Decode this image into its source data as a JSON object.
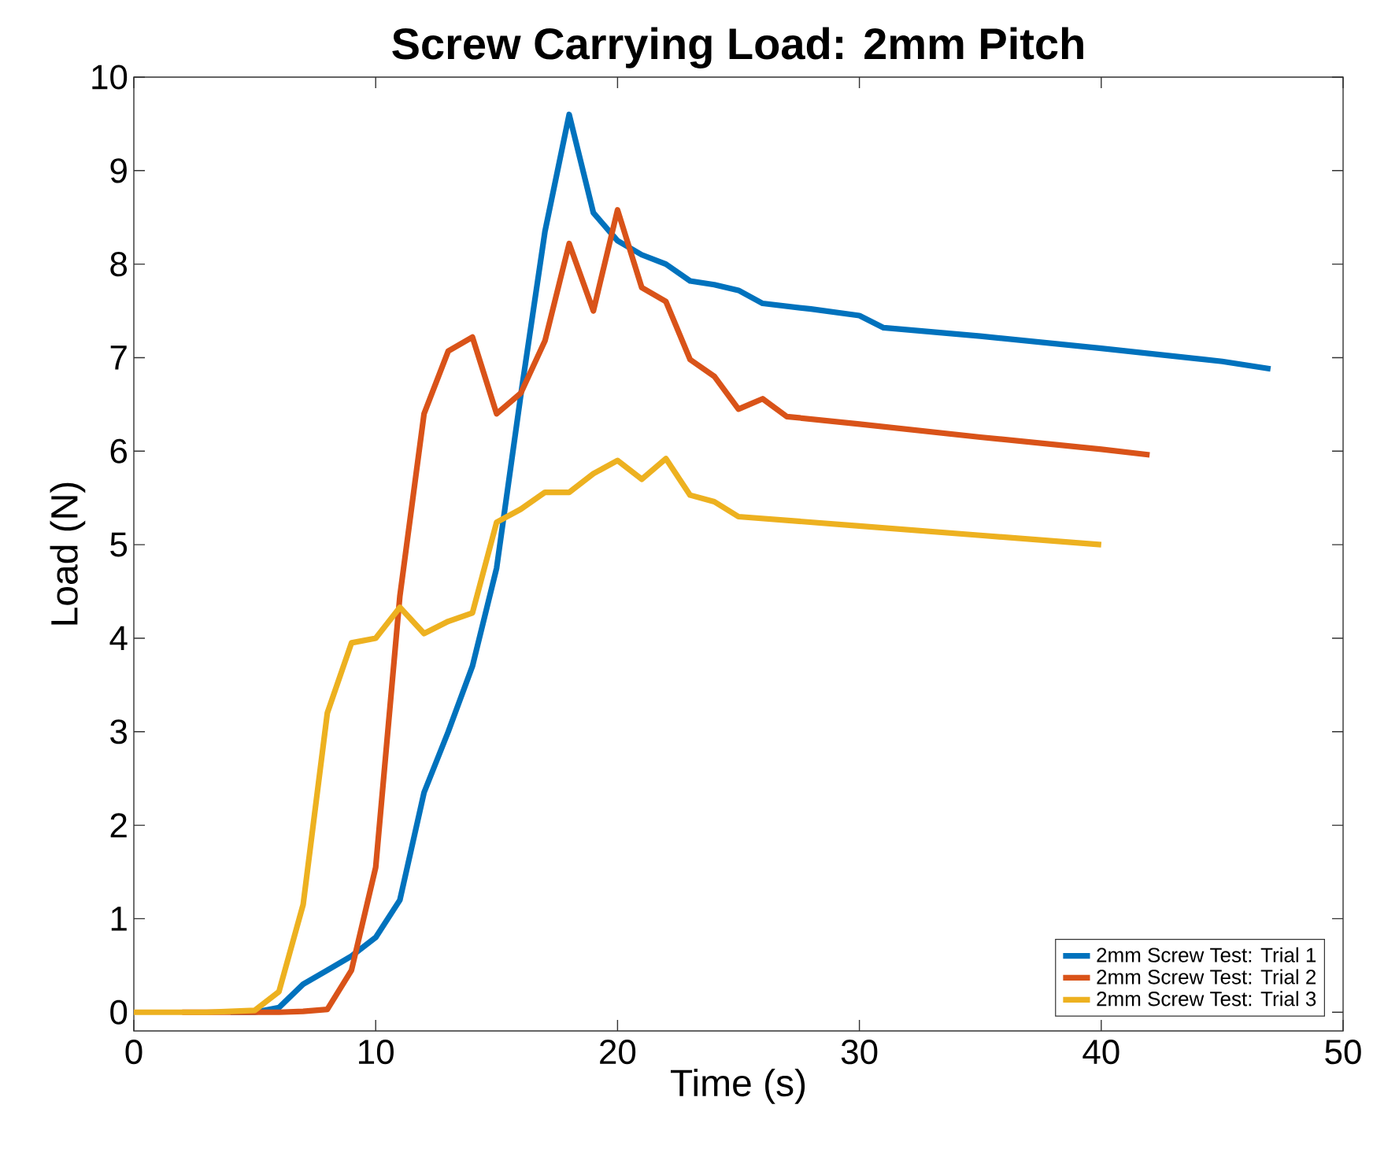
{
  "chart_data": {
    "type": "line",
    "title": "Screw Carrying Load: 2mm Pitch",
    "xlabel": "Time (s)",
    "ylabel": "Load (N)",
    "xlim": [
      0,
      50
    ],
    "ylim": [
      -0.2,
      10
    ],
    "xticks": [
      0,
      10,
      20,
      30,
      40,
      50
    ],
    "yticks": [
      0,
      1,
      2,
      3,
      4,
      5,
      6,
      7,
      8,
      9,
      10
    ],
    "grid": false,
    "legend": "bottom right",
    "marker": "none",
    "line_style": "solid",
    "series": [
      {
        "name": "2mm Screw Test: Trial 1",
        "color": "#0072bd",
        "x": [
          4,
          5,
          6,
          7,
          8,
          9,
          10,
          11,
          12,
          13,
          14,
          15,
          16,
          17,
          18,
          19,
          20,
          21,
          22,
          23,
          24,
          25,
          26,
          28,
          30,
          31,
          35,
          40,
          45,
          47
        ],
        "values": [
          0,
          0,
          0.05,
          0.3,
          0.45,
          0.6,
          0.8,
          1.2,
          2.35,
          3.0,
          3.7,
          4.75,
          6.6,
          8.35,
          9.6,
          8.55,
          8.25,
          8.1,
          8.0,
          7.82,
          7.78,
          7.72,
          7.58,
          7.52,
          7.45,
          7.32,
          7.23,
          7.1,
          6.96,
          6.88
        ]
      },
      {
        "name": "2mm Screw Test: Trial 2",
        "color": "#d95319",
        "x": [
          2,
          3,
          4,
          5,
          6,
          7,
          8,
          9,
          10,
          11,
          12,
          13,
          14,
          15,
          16,
          17,
          18,
          19,
          20,
          21,
          22,
          23,
          24,
          25,
          26,
          27,
          30,
          35,
          40,
          42
        ],
        "values": [
          0,
          0,
          0,
          0,
          0,
          0.01,
          0.03,
          0.45,
          1.55,
          4.45,
          6.4,
          7.07,
          7.22,
          6.4,
          6.62,
          7.18,
          8.22,
          7.5,
          8.58,
          7.75,
          7.6,
          6.98,
          6.8,
          6.45,
          6.56,
          6.37,
          6.29,
          6.15,
          6.02,
          5.96
        ]
      },
      {
        "name": "2mm Screw Test: Trial 3",
        "color": "#edb120",
        "x": [
          0,
          1,
          2,
          3,
          4,
          5,
          6,
          7,
          8,
          9,
          10,
          11,
          12,
          13,
          14,
          15,
          16,
          17,
          18,
          19,
          20,
          21,
          22,
          23,
          24,
          25,
          30,
          35,
          40
        ],
        "values": [
          0,
          0,
          0,
          0,
          0.01,
          0.02,
          0.22,
          1.15,
          3.2,
          3.95,
          4.0,
          4.33,
          4.05,
          4.18,
          4.27,
          5.24,
          5.38,
          5.56,
          5.56,
          5.76,
          5.9,
          5.7,
          5.92,
          5.53,
          5.46,
          5.3,
          5.2,
          5.1,
          5.0
        ]
      }
    ]
  }
}
